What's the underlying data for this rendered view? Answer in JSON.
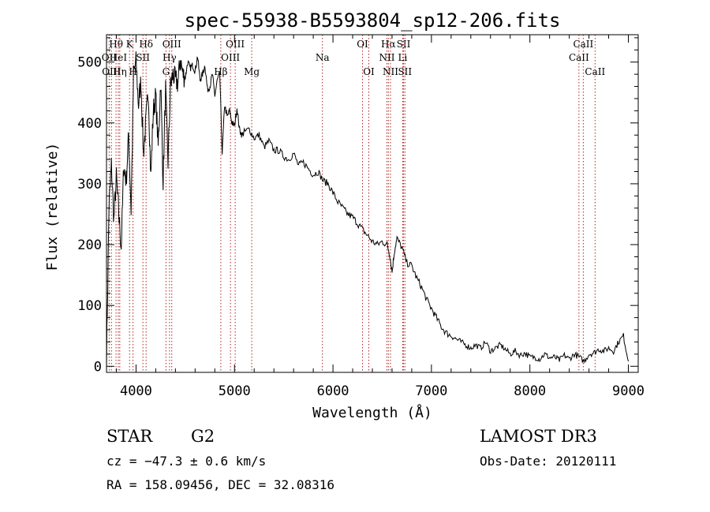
{
  "chart_data": {
    "type": "line",
    "title": "spec-55938-B5593804_sp12-206.fits",
    "xlabel": "Wavelength (Å)",
    "ylabel": "Flux (relative)",
    "xlim": [
      3700,
      9100
    ],
    "ylim": [
      -10,
      545
    ],
    "xticks": [
      4000,
      5000,
      6000,
      7000,
      8000,
      9000
    ],
    "yticks": [
      0,
      100,
      200,
      300,
      400,
      500
    ],
    "series": [
      {
        "name": "flux",
        "x": [
          3700,
          3725,
          3750,
          3775,
          3800,
          3825,
          3850,
          3875,
          3900,
          3925,
          3950,
          3975,
          4000,
          4025,
          4050,
          4075,
          4100,
          4125,
          4150,
          4175,
          4200,
          4225,
          4250,
          4275,
          4300,
          4325,
          4350,
          4375,
          4400,
          4425,
          4450,
          4475,
          4500,
          4525,
          4550,
          4575,
          4600,
          4625,
          4650,
          4675,
          4700,
          4725,
          4750,
          4775,
          4800,
          4825,
          4850,
          4875,
          4900,
          4925,
          4950,
          4975,
          5000,
          5025,
          5050,
          5075,
          5100,
          5150,
          5200,
          5250,
          5300,
          5350,
          5400,
          5450,
          5500,
          5550,
          5600,
          5650,
          5700,
          5750,
          5800,
          5850,
          5900,
          5950,
          6000,
          6050,
          6100,
          6150,
          6200,
          6250,
          6300,
          6350,
          6400,
          6450,
          6500,
          6550,
          6575,
          6600,
          6625,
          6650,
          6700,
          6750,
          6800,
          6850,
          6900,
          6950,
          7000,
          7050,
          7100,
          7150,
          7200,
          7250,
          7300,
          7350,
          7400,
          7450,
          7500,
          7550,
          7600,
          7650,
          7700,
          7750,
          7800,
          7850,
          7900,
          7950,
          8000,
          8050,
          8100,
          8150,
          8200,
          8250,
          8300,
          8350,
          8400,
          8450,
          8500,
          8550,
          8600,
          8650,
          8700,
          8750,
          8800,
          8850,
          8900,
          8950,
          9000
        ],
        "y": [
          10,
          260,
          330,
          240,
          310,
          250,
          195,
          330,
          305,
          380,
          255,
          480,
          500,
          430,
          470,
          350,
          400,
          455,
          310,
          420,
          445,
          360,
          470,
          305,
          455,
          335,
          460,
          480,
          470,
          465,
          505,
          480,
          475,
          500,
          490,
          495,
          485,
          510,
          470,
          480,
          495,
          455,
          460,
          480,
          445,
          470,
          480,
          350,
          430,
          410,
          420,
          400,
          395,
          425,
          390,
          380,
          385,
          390,
          375,
          380,
          360,
          370,
          355,
          355,
          345,
          340,
          350,
          330,
          335,
          325,
          315,
          320,
          305,
          300,
          285,
          270,
          260,
          250,
          245,
          235,
          225,
          215,
          205,
          200,
          205,
          200,
          185,
          155,
          190,
          210,
          195,
          170,
          165,
          145,
          130,
          110,
          95,
          80,
          65,
          55,
          50,
          45,
          40,
          35,
          30,
          35,
          30,
          40,
          25,
          30,
          35,
          28,
          20,
          25,
          18,
          22,
          15,
          15,
          12,
          20,
          14,
          15,
          10,
          18,
          12,
          20,
          15,
          8,
          20,
          22,
          28,
          25,
          30,
          25,
          40,
          50,
          8
        ]
      }
    ],
    "spectral_lines": [
      {
        "label": "Hθ",
        "wavelength": 3797,
        "row": 1
      },
      {
        "label": "OII",
        "wavelength": 3727,
        "row": 2
      },
      {
        "label": "HeI",
        "wavelength": 3820,
        "row": 2
      },
      {
        "label": "OIII",
        "wavelength": 3750,
        "row": 3
      },
      {
        "label": "Hη",
        "wavelength": 3835,
        "row": 3
      },
      {
        "label": "K",
        "wavelength": 3934,
        "row": 1
      },
      {
        "label": "SII",
        "wavelength": 4070,
        "row": 2
      },
      {
        "label": "H",
        "wavelength": 3969,
        "row": 3
      },
      {
        "label": "Hδ",
        "wavelength": 4102,
        "row": 1
      },
      {
        "label": "OIII",
        "wavelength": 4363,
        "row": 1
      },
      {
        "label": "Hγ",
        "wavelength": 4340,
        "row": 2
      },
      {
        "label": "G",
        "wavelength": 4304,
        "row": 3
      },
      {
        "label": "OIII",
        "wavelength": 5007,
        "row": 1
      },
      {
        "label": "OIII",
        "wavelength": 4959,
        "row": 2
      },
      {
        "label": "Hβ",
        "wavelength": 4861,
        "row": 3
      },
      {
        "label": "Mg",
        "wavelength": 5175,
        "row": 3
      },
      {
        "label": "Na",
        "wavelength": 5893,
        "row": 2
      },
      {
        "label": "OI",
        "wavelength": 6300,
        "row": 1
      },
      {
        "label": "OI",
        "wavelength": 6364,
        "row": 3
      },
      {
        "label": "Hα",
        "wavelength": 6563,
        "row": 1
      },
      {
        "label": "NII",
        "wavelength": 6548,
        "row": 2
      },
      {
        "label": "NII",
        "wavelength": 6584,
        "row": 3
      },
      {
        "label": "SII",
        "wavelength": 6717,
        "row": 1
      },
      {
        "label": "Li",
        "wavelength": 6708,
        "row": 2
      },
      {
        "label": "SII",
        "wavelength": 6731,
        "row": 3
      },
      {
        "label": "CaII",
        "wavelength": 8542,
        "row": 1
      },
      {
        "label": "CaII",
        "wavelength": 8498,
        "row": 2
      },
      {
        "label": "CaII",
        "wavelength": 8662,
        "row": 3
      }
    ]
  },
  "footer": {
    "object_class": "STAR",
    "subclass": "G2",
    "survey": "LAMOST DR3",
    "cz": "cz = −47.3 ± 0.6 km/s",
    "obs_date": "Obs-Date: 20120111",
    "coords": "RA = 158.09456, DEC =  32.08316"
  },
  "colors": {
    "line": "#000000",
    "spectral_line": "#b22222"
  }
}
